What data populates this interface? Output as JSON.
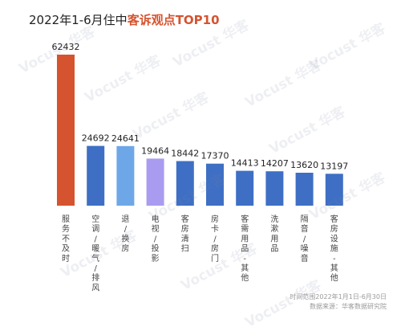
{
  "title": {
    "prefix": "2022年1-6月住中",
    "highlight": "客诉观点TOP10"
  },
  "footer": {
    "time_range": "时间范围2022年1月1日-6月30日",
    "source": "数据来源：华客数据研究院"
  },
  "watermark": "Vocust 华客",
  "colors": {
    "title_highlight": "#d6532f"
  },
  "chart_data": {
    "type": "bar",
    "title": "2022年1-6月住中客诉观点TOP10",
    "categories": [
      "服务不及时",
      "空调/暖气/排风",
      "退/换房",
      "电视/投影",
      "客房清扫",
      "房卡/房门",
      "客需用品-其他",
      "洗漱用品",
      "隔音/噪音",
      "客房设施-其他"
    ],
    "category_labels": [
      [
        "服",
        "务",
        "不",
        "及",
        "时"
      ],
      [
        "空",
        "调",
        "/",
        "暖",
        "气",
        "/",
        "排",
        "风"
      ],
      [
        "退",
        "/",
        "换",
        "房"
      ],
      [
        "电",
        "视",
        "/",
        "投",
        "影"
      ],
      [
        "客",
        "房",
        "清",
        "扫"
      ],
      [
        "房",
        "卡",
        "/",
        "房",
        "门"
      ],
      [
        "客",
        "需",
        "用",
        "品",
        "-",
        "其",
        "他"
      ],
      [
        "洗",
        "漱",
        "用",
        "品"
      ],
      [
        "隔",
        "音",
        "/",
        "噪",
        "音"
      ],
      [
        "客",
        "房",
        "设",
        "施",
        "-",
        "其",
        "他"
      ]
    ],
    "values": [
      62432,
      24692,
      24641,
      19464,
      18442,
      17370,
      14413,
      14207,
      13620,
      13197
    ],
    "colors": [
      "#d6532f",
      "#3e6fc4",
      "#6ea7e8",
      "#a99cf0",
      "#3e6fc4",
      "#3e6fc4",
      "#3e6fc4",
      "#3e6fc4",
      "#3e6fc4",
      "#3e6fc4"
    ],
    "ylim": [
      0,
      62432
    ],
    "grid": false,
    "legend": "none"
  }
}
